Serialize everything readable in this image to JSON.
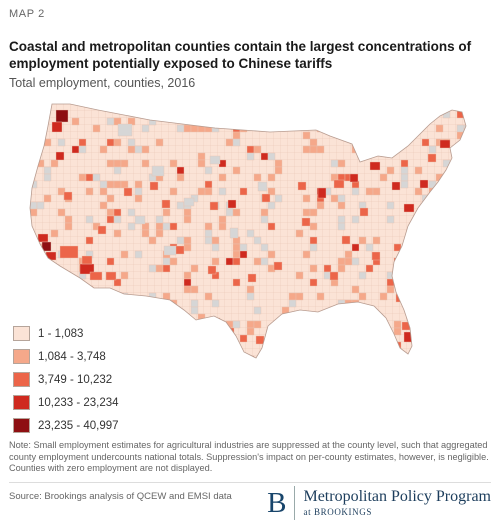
{
  "header": {
    "map_label": "MAP 2",
    "title": "Coastal and metropolitan counties contain the largest concentrations of employment potentially exposed to Chinese tariffs",
    "subtitle": "Total employment, counties, 2016"
  },
  "legend": {
    "items": [
      {
        "label": "1 - 1,083",
        "color": "#fbe3d6"
      },
      {
        "label": "1,084 - 3,748",
        "color": "#f5a88a"
      },
      {
        "label": "3,749 - 10,232",
        "color": "#ec6549"
      },
      {
        "label": "10,233 - 23,234",
        "color": "#cf2a1f"
      },
      {
        "label": "23,235 - 40,997",
        "color": "#8e0f12"
      }
    ],
    "no_data_color": "#d6d6d6"
  },
  "note": "Note: Small employment estimates for agricultural industries are suppressed at the county level, such that aggregated county employment undercounts national totals. Suppression's impact on per-county estimates, however, is negligible. Counties with zero employment are not displayed.",
  "source": "Source: Brookings analysis of QCEW and EMSI data",
  "brand": {
    "mark": "B",
    "name": "Metropolitan Policy Program",
    "sub": "at BROOKINGS"
  }
}
